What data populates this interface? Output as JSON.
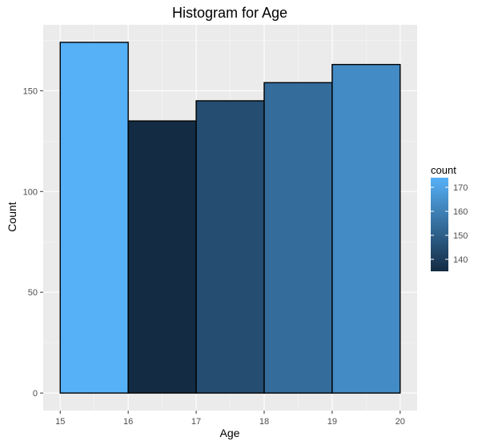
{
  "chart_data": {
    "type": "bar",
    "title": "Histogram for Age",
    "xlabel": "Age",
    "ylabel": "Count",
    "bins": [
      {
        "x0": 15,
        "x1": 16,
        "count": 174
      },
      {
        "x0": 16,
        "x1": 17,
        "count": 135
      },
      {
        "x0": 17,
        "x1": 18,
        "count": 145
      },
      {
        "x0": 18,
        "x1": 19,
        "count": 154
      },
      {
        "x0": 19,
        "x1": 20,
        "count": 163
      }
    ],
    "xlim": [
      14.75,
      20.25
    ],
    "ylim": [
      -8.7,
      182.7
    ],
    "x_ticks": [
      15,
      16,
      17,
      18,
      19,
      20
    ],
    "x_tick_labels": [
      "15",
      "16",
      "17",
      "18",
      "19",
      "20"
    ],
    "y_ticks": [
      0,
      50,
      100,
      150
    ],
    "y_tick_labels": [
      "0",
      "50",
      "100",
      "150"
    ],
    "grid": true,
    "legend": {
      "title": "count",
      "placement": "right",
      "type": "colorbar",
      "range": [
        135,
        174
      ],
      "ticks": [
        140,
        150,
        160,
        170
      ],
      "tick_labels": [
        "140",
        "150",
        "160",
        "170"
      ]
    },
    "colors": {
      "low": "#132b43",
      "high": "#56b1f7",
      "panel_background": "#ebebeb",
      "grid_major": "#ffffff",
      "bar_outline": "#000000"
    }
  }
}
